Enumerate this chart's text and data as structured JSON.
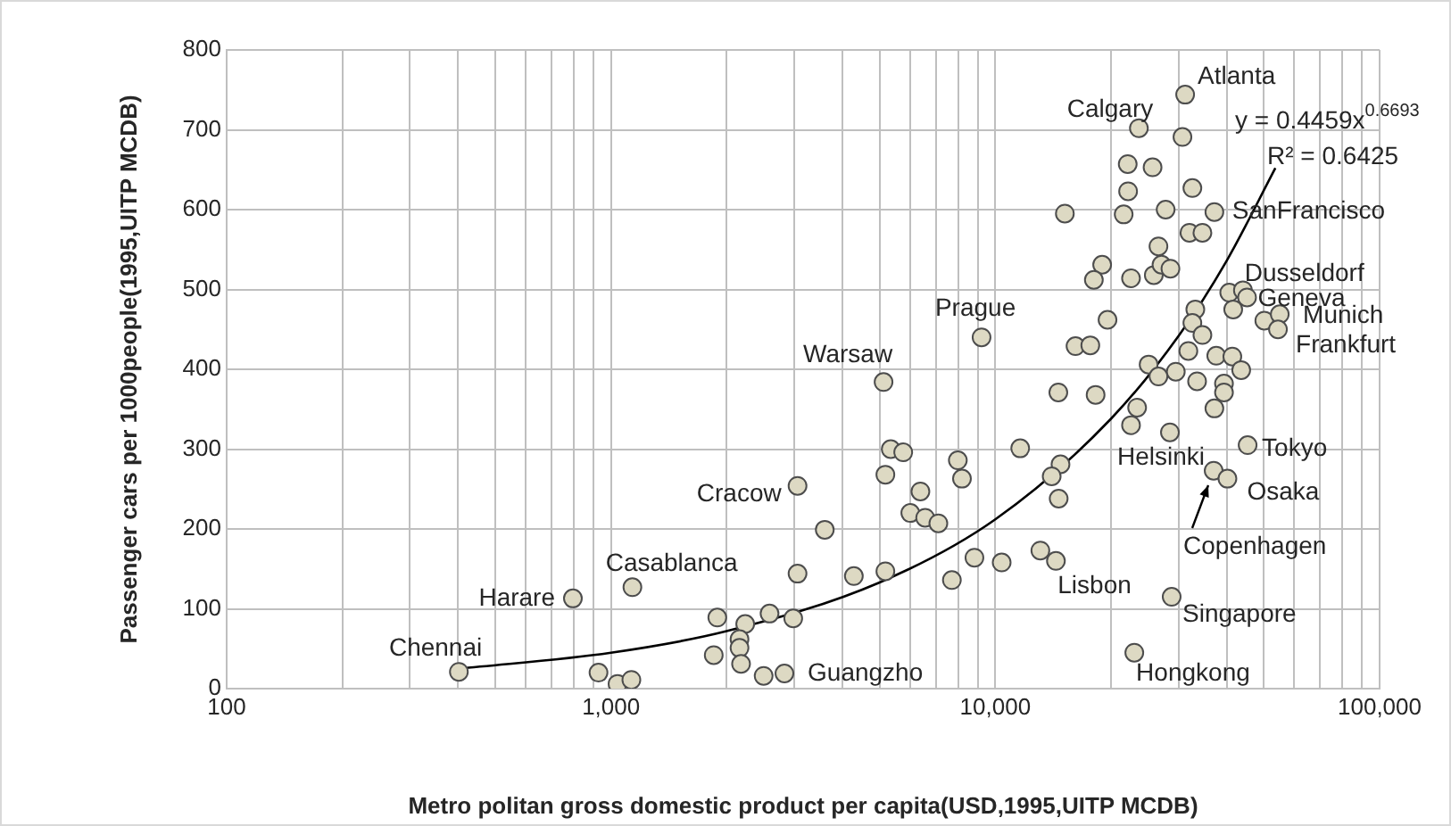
{
  "chart_data": {
    "type": "scatter",
    "xlabel": "Metro politan gross domestic product per capita(USD,1995,UITP MCDB)",
    "ylabel": "Passenger cars per 1000people(1995,UITP MCDB)",
    "log": "x",
    "grid": true,
    "marker": "circle",
    "xlim": [
      100,
      100000
    ],
    "ylim": [
      0,
      800
    ],
    "xticks": [
      {
        "value": 100,
        "label": "100"
      },
      {
        "value": 200,
        "label": null
      },
      {
        "value": 300,
        "label": null
      },
      {
        "value": 400,
        "label": null
      },
      {
        "value": 500,
        "label": null
      },
      {
        "value": 600,
        "label": null
      },
      {
        "value": 700,
        "label": null
      },
      {
        "value": 800,
        "label": null
      },
      {
        "value": 900,
        "label": null
      },
      {
        "value": 1000,
        "label": "1,000"
      },
      {
        "value": 2000,
        "label": null
      },
      {
        "value": 3000,
        "label": null
      },
      {
        "value": 4000,
        "label": null
      },
      {
        "value": 5000,
        "label": null
      },
      {
        "value": 6000,
        "label": null
      },
      {
        "value": 7000,
        "label": null
      },
      {
        "value": 8000,
        "label": null
      },
      {
        "value": 9000,
        "label": null
      },
      {
        "value": 10000,
        "label": "10,000"
      },
      {
        "value": 20000,
        "label": null
      },
      {
        "value": 30000,
        "label": null
      },
      {
        "value": 40000,
        "label": null
      },
      {
        "value": 50000,
        "label": null
      },
      {
        "value": 60000,
        "label": null
      },
      {
        "value": 70000,
        "label": null
      },
      {
        "value": 80000,
        "label": null
      },
      {
        "value": 90000,
        "label": null
      },
      {
        "value": 100000,
        "label": "100,000"
      }
    ],
    "yticks": [
      0,
      100,
      200,
      300,
      400,
      500,
      600,
      700,
      800
    ],
    "series": [
      {
        "color": "#ddd9c3",
        "x": [
          402,
          796,
          1137,
          928,
          1040,
          1130,
          3058,
          3600,
          3058,
          1891,
          2586,
          2980,
          2235,
          2160,
          2160,
          1851,
          2180,
          2496,
          2827,
          5345,
          5760,
          5176,
          6385,
          6010,
          6570,
          7110,
          7990,
          8190,
          11610,
          14780,
          14020,
          14620,
          4285,
          5176,
          7710,
          8825,
          10390,
          13100,
          14380,
          23000,
          5120,
          9210,
          15170,
          21580,
          22110,
          22160,
          23640,
          18970,
          18050,
          22550,
          19590,
          16170,
          17670,
          14590,
          18240,
          23390,
          22550,
          31190,
          30690,
          25660,
          32570,
          27750,
          37160,
          32000,
          34590,
          26580,
          25850,
          27070,
          28560,
          40620,
          44090,
          45190,
          41600,
          33150,
          32570,
          50120,
          54980,
          54390,
          34590,
          31800,
          25060,
          26580,
          29490,
          37580,
          41380,
          43640,
          33500,
          39360,
          39360,
          37160,
          28470,
          45350,
          37000,
          40180,
          28770
        ],
        "values": [
          21,
          113,
          127,
          20,
          6,
          11,
          254,
          199,
          144,
          89,
          94,
          88,
          81,
          62,
          51,
          42,
          31,
          16,
          19,
          300,
          296,
          268,
          247,
          220,
          214,
          207,
          286,
          263,
          301,
          281,
          266,
          238,
          141,
          147,
          136,
          164,
          158,
          173,
          160,
          45,
          384,
          440,
          595,
          594,
          657,
          623,
          702,
          531,
          512,
          514,
          462,
          429,
          430,
          371,
          368,
          352,
          330,
          744,
          691,
          653,
          627,
          600,
          597,
          571,
          571,
          554,
          518,
          531,
          526,
          496,
          499,
          490,
          475,
          475,
          458,
          461,
          469,
          450,
          443,
          423,
          406,
          391,
          397,
          417,
          416,
          399,
          385,
          382,
          371,
          351,
          321,
          305,
          273,
          263,
          115
        ]
      },
      {
        "type": "line",
        "color": "#000000",
        "marker": "none",
        "x": [
          402,
          1000,
          2000,
          5000,
          10000,
          20000,
          30000,
          40000,
          53550
        ],
        "values": [
          25,
          45,
          72,
          133,
          212,
          338,
          442,
          536,
          652
        ]
      }
    ],
    "annotations": [
      "y = 0.4459x$^{0.6693}$",
      "R² = 0.6425",
      {
        "text": "Atlanta",
        "x": 31190,
        "y": 744
      },
      {
        "text": "Calgary",
        "x": 23640,
        "y": 702
      },
      {
        "text": "SanFrancisco",
        "x": 37160,
        "y": 597
      },
      {
        "text": "Dusseldorf",
        "x": 44090,
        "y": 499
      },
      {
        "text": "Geneva",
        "x": 45190,
        "y": 490
      },
      {
        "text": "Munich",
        "x": 54980,
        "y": 469
      },
      {
        "text": "Frankfurt",
        "x": 54390,
        "y": 450
      },
      {
        "text": "Tokyo",
        "x": 45350,
        "y": 305
      },
      {
        "text": "Helsinki",
        "x": 37000,
        "y": 273
      },
      {
        "text": "Osaka",
        "x": 40180,
        "y": 263
      },
      {
        "text": "Copenhagen",
        "x": 37000,
        "y": 273
      },
      {
        "text": "Lisbon",
        "x": 14380,
        "y": 160
      },
      {
        "text": "Singapore",
        "x": 28770,
        "y": 115
      },
      {
        "text": "Hongkong",
        "x": 23000,
        "y": 45
      },
      {
        "text": "Guangzho",
        "x": 2827,
        "y": 19
      },
      {
        "text": "Chennai",
        "x": 402,
        "y": 21
      },
      {
        "text": "Harare",
        "x": 796,
        "y": 113
      },
      {
        "text": "Casablanca",
        "x": 1137,
        "y": 127
      },
      {
        "text": "Cracow",
        "x": 3058,
        "y": 254
      },
      {
        "text": "Warsaw",
        "x": 5120,
        "y": 384
      },
      {
        "text": "Prague",
        "x": 9210,
        "y": 440
      }
    ]
  }
}
